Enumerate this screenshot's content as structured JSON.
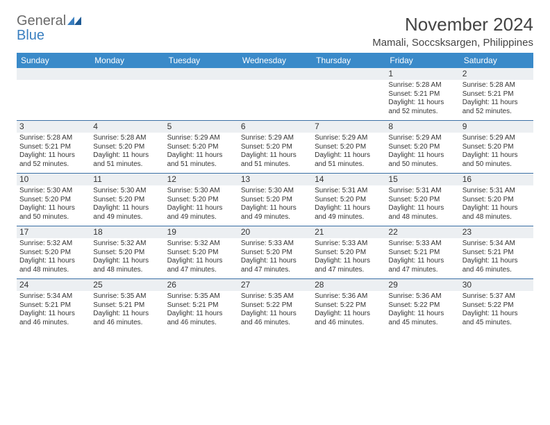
{
  "logo": {
    "word1": "General",
    "word2": "Blue"
  },
  "title": "November 2024",
  "location": "Mamali, Soccsksargen, Philippines",
  "colors": {
    "header_bg": "#3a8ac9",
    "header_text": "#ffffff",
    "daynum_bg": "#eceff2",
    "row_border": "#3a6fa5",
    "body_text": "#333333",
    "logo_gray": "#6a6a6a",
    "logo_blue": "#3a7fc0",
    "page_bg": "#ffffff"
  },
  "dow": [
    "Sunday",
    "Monday",
    "Tuesday",
    "Wednesday",
    "Thursday",
    "Friday",
    "Saturday"
  ],
  "layout": {
    "type": "calendar",
    "columns": 7,
    "rows": 5,
    "fontsize_title": 26,
    "fontsize_location": 15,
    "fontsize_dow": 12,
    "fontsize_daynum": 12,
    "fontsize_cell": 10
  },
  "weeks": [
    [
      null,
      null,
      null,
      null,
      null,
      {
        "n": "1",
        "sr": "5:28 AM",
        "ss": "5:21 PM",
        "dl": "11 hours and 52 minutes."
      },
      {
        "n": "2",
        "sr": "5:28 AM",
        "ss": "5:21 PM",
        "dl": "11 hours and 52 minutes."
      }
    ],
    [
      {
        "n": "3",
        "sr": "5:28 AM",
        "ss": "5:21 PM",
        "dl": "11 hours and 52 minutes."
      },
      {
        "n": "4",
        "sr": "5:28 AM",
        "ss": "5:20 PM",
        "dl": "11 hours and 51 minutes."
      },
      {
        "n": "5",
        "sr": "5:29 AM",
        "ss": "5:20 PM",
        "dl": "11 hours and 51 minutes."
      },
      {
        "n": "6",
        "sr": "5:29 AM",
        "ss": "5:20 PM",
        "dl": "11 hours and 51 minutes."
      },
      {
        "n": "7",
        "sr": "5:29 AM",
        "ss": "5:20 PM",
        "dl": "11 hours and 51 minutes."
      },
      {
        "n": "8",
        "sr": "5:29 AM",
        "ss": "5:20 PM",
        "dl": "11 hours and 50 minutes."
      },
      {
        "n": "9",
        "sr": "5:29 AM",
        "ss": "5:20 PM",
        "dl": "11 hours and 50 minutes."
      }
    ],
    [
      {
        "n": "10",
        "sr": "5:30 AM",
        "ss": "5:20 PM",
        "dl": "11 hours and 50 minutes."
      },
      {
        "n": "11",
        "sr": "5:30 AM",
        "ss": "5:20 PM",
        "dl": "11 hours and 49 minutes."
      },
      {
        "n": "12",
        "sr": "5:30 AM",
        "ss": "5:20 PM",
        "dl": "11 hours and 49 minutes."
      },
      {
        "n": "13",
        "sr": "5:30 AM",
        "ss": "5:20 PM",
        "dl": "11 hours and 49 minutes."
      },
      {
        "n": "14",
        "sr": "5:31 AM",
        "ss": "5:20 PM",
        "dl": "11 hours and 49 minutes."
      },
      {
        "n": "15",
        "sr": "5:31 AM",
        "ss": "5:20 PM",
        "dl": "11 hours and 48 minutes."
      },
      {
        "n": "16",
        "sr": "5:31 AM",
        "ss": "5:20 PM",
        "dl": "11 hours and 48 minutes."
      }
    ],
    [
      {
        "n": "17",
        "sr": "5:32 AM",
        "ss": "5:20 PM",
        "dl": "11 hours and 48 minutes."
      },
      {
        "n": "18",
        "sr": "5:32 AM",
        "ss": "5:20 PM",
        "dl": "11 hours and 48 minutes."
      },
      {
        "n": "19",
        "sr": "5:32 AM",
        "ss": "5:20 PM",
        "dl": "11 hours and 47 minutes."
      },
      {
        "n": "20",
        "sr": "5:33 AM",
        "ss": "5:20 PM",
        "dl": "11 hours and 47 minutes."
      },
      {
        "n": "21",
        "sr": "5:33 AM",
        "ss": "5:20 PM",
        "dl": "11 hours and 47 minutes."
      },
      {
        "n": "22",
        "sr": "5:33 AM",
        "ss": "5:21 PM",
        "dl": "11 hours and 47 minutes."
      },
      {
        "n": "23",
        "sr": "5:34 AM",
        "ss": "5:21 PM",
        "dl": "11 hours and 46 minutes."
      }
    ],
    [
      {
        "n": "24",
        "sr": "5:34 AM",
        "ss": "5:21 PM",
        "dl": "11 hours and 46 minutes."
      },
      {
        "n": "25",
        "sr": "5:35 AM",
        "ss": "5:21 PM",
        "dl": "11 hours and 46 minutes."
      },
      {
        "n": "26",
        "sr": "5:35 AM",
        "ss": "5:21 PM",
        "dl": "11 hours and 46 minutes."
      },
      {
        "n": "27",
        "sr": "5:35 AM",
        "ss": "5:22 PM",
        "dl": "11 hours and 46 minutes."
      },
      {
        "n": "28",
        "sr": "5:36 AM",
        "ss": "5:22 PM",
        "dl": "11 hours and 46 minutes."
      },
      {
        "n": "29",
        "sr": "5:36 AM",
        "ss": "5:22 PM",
        "dl": "11 hours and 45 minutes."
      },
      {
        "n": "30",
        "sr": "5:37 AM",
        "ss": "5:22 PM",
        "dl": "11 hours and 45 minutes."
      }
    ]
  ],
  "labels": {
    "sunrise": "Sunrise:",
    "sunset": "Sunset:",
    "daylight": "Daylight:"
  }
}
